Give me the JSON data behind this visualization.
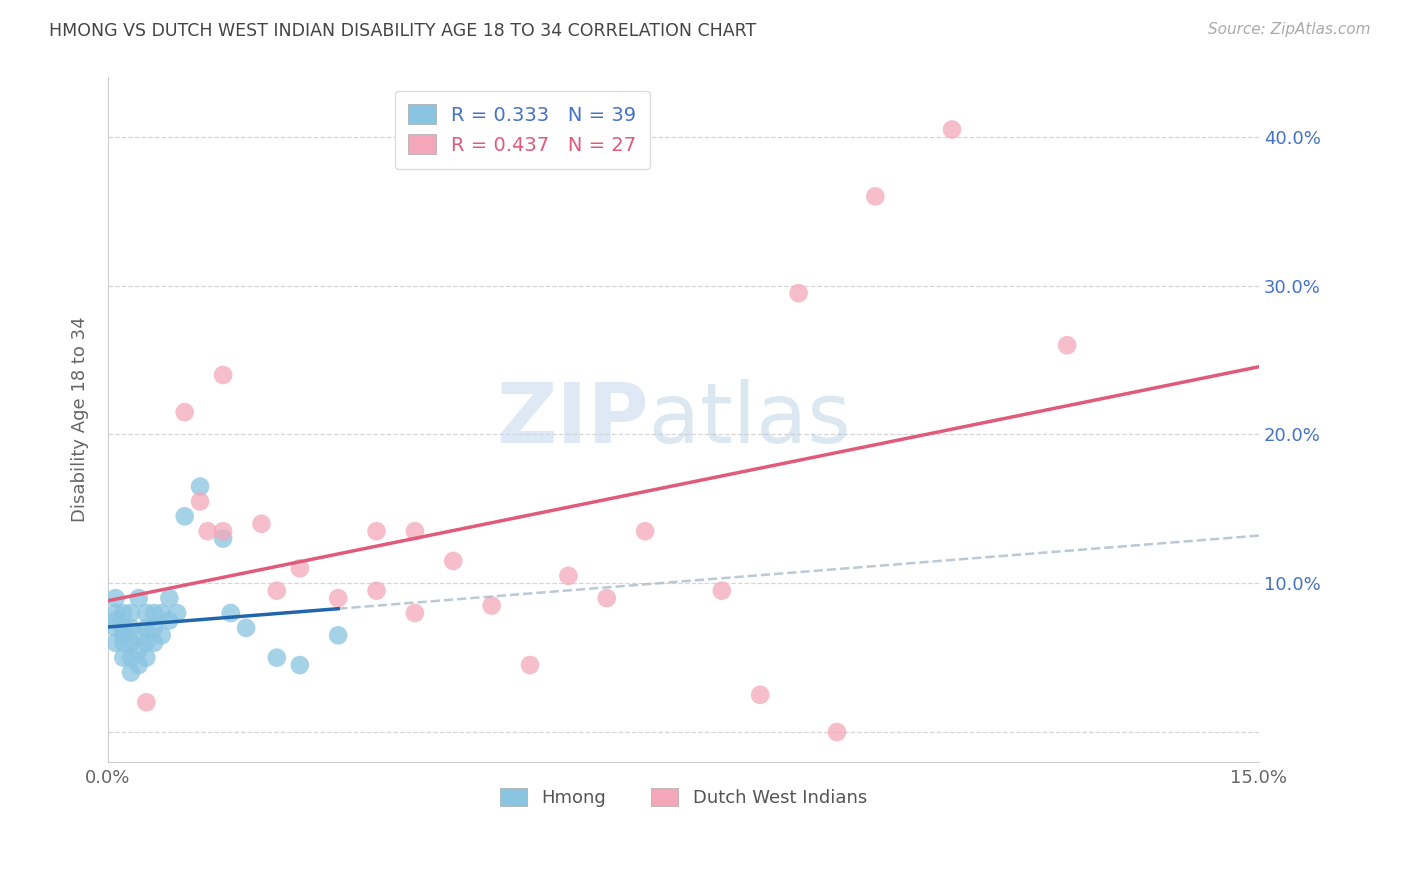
{
  "title": "HMONG VS DUTCH WEST INDIAN DISABILITY AGE 18 TO 34 CORRELATION CHART",
  "source": "Source: ZipAtlas.com",
  "ylabel": "Disability Age 18 to 34",
  "xlim": [
    0.0,
    0.15
  ],
  "ylim": [
    -0.02,
    0.44
  ],
  "yticks_right": [
    0.1,
    0.2,
    0.3,
    0.4
  ],
  "ytick_right_labels": [
    "10.0%",
    "20.0%",
    "30.0%",
    "40.0%"
  ],
  "hmong_color": "#89c4e1",
  "dutch_color": "#f4a7b9",
  "hmong_line_color": "#2166ac",
  "dutch_line_color": "#e05a7a",
  "hmong_dash_color": "#aac8e8",
  "hmong_label": "Hmong",
  "dutch_label": "Dutch West Indians",
  "hmong_R": 0.333,
  "hmong_N": 39,
  "dutch_R": 0.437,
  "dutch_N": 27,
  "watermark_zip": "ZIP",
  "watermark_atlas": "atlas",
  "background_color": "#ffffff",
  "grid_color": "#cccccc",
  "title_color": "#444444",
  "axis_label_color": "#666666",
  "right_tick_color": "#4472c4",
  "legend_text_color_hmong": "#4472c4",
  "legend_text_color_dutch": "#e05a7a",
  "hmong_x": [
    0.001,
    0.001,
    0.001,
    0.001,
    0.001,
    0.002,
    0.002,
    0.002,
    0.002,
    0.002,
    0.003,
    0.003,
    0.003,
    0.003,
    0.003,
    0.004,
    0.004,
    0.004,
    0.004,
    0.005,
    0.005,
    0.005,
    0.005,
    0.006,
    0.006,
    0.006,
    0.007,
    0.007,
    0.008,
    0.008,
    0.009,
    0.01,
    0.012,
    0.015,
    0.016,
    0.018,
    0.022,
    0.025,
    0.03
  ],
  "hmong_y": [
    0.06,
    0.07,
    0.075,
    0.08,
    0.09,
    0.05,
    0.06,
    0.065,
    0.07,
    0.08,
    0.04,
    0.05,
    0.06,
    0.07,
    0.08,
    0.045,
    0.055,
    0.065,
    0.09,
    0.05,
    0.06,
    0.07,
    0.08,
    0.06,
    0.07,
    0.08,
    0.065,
    0.08,
    0.075,
    0.09,
    0.08,
    0.145,
    0.165,
    0.13,
    0.08,
    0.07,
    0.05,
    0.045,
    0.065
  ],
  "dutch_x": [
    0.005,
    0.01,
    0.012,
    0.013,
    0.015,
    0.015,
    0.02,
    0.022,
    0.025,
    0.03,
    0.035,
    0.035,
    0.04,
    0.04,
    0.045,
    0.05,
    0.055,
    0.06,
    0.065,
    0.07,
    0.08,
    0.085,
    0.09,
    0.095,
    0.1,
    0.11,
    0.125
  ],
  "dutch_y": [
    0.02,
    0.215,
    0.155,
    0.135,
    0.135,
    0.24,
    0.14,
    0.095,
    0.11,
    0.09,
    0.095,
    0.135,
    0.08,
    0.135,
    0.115,
    0.085,
    0.045,
    0.105,
    0.09,
    0.135,
    0.095,
    0.025,
    0.295,
    0.0,
    0.36,
    0.405,
    0.26
  ]
}
